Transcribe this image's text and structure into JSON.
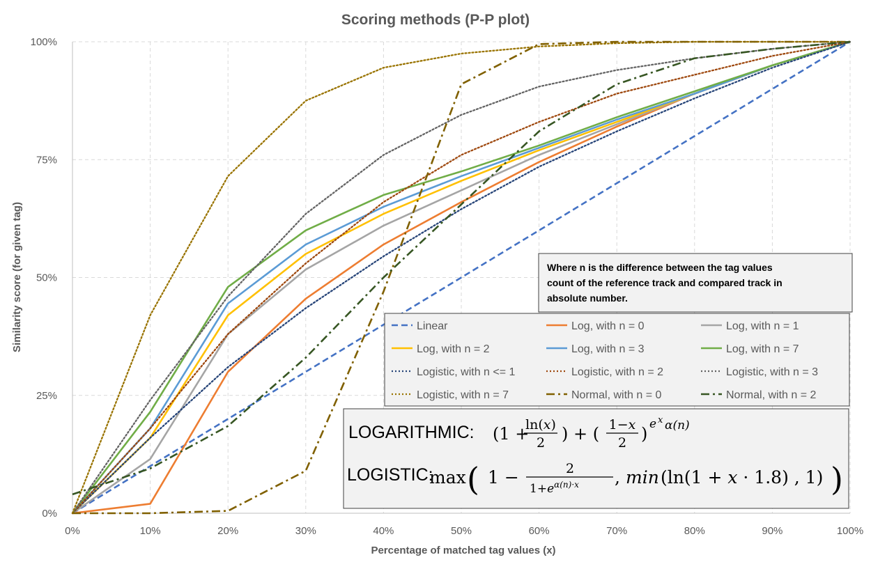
{
  "chart_data": {
    "type": "line",
    "title": "Scoring methods (P-P plot)",
    "xlabel": "Percentage of matched tag values (x)",
    "ylabel": "Similarity score (for given tag)",
    "xlim": [
      0,
      100
    ],
    "ylim": [
      0,
      100
    ],
    "x_ticks": [
      "0%",
      "10%",
      "20%",
      "30%",
      "40%",
      "50%",
      "60%",
      "70%",
      "80%",
      "90%",
      "100%"
    ],
    "y_ticks": [
      "0%",
      "25%",
      "50%",
      "75%",
      "100%"
    ],
    "grid": "dashed",
    "legend_position": "center-right",
    "x": [
      0,
      10,
      20,
      30,
      40,
      50,
      60,
      70,
      80,
      90,
      100
    ],
    "series": [
      {
        "name": "Linear",
        "color": "#4472C4",
        "style": "dashed",
        "values": [
          0,
          10,
          20,
          30,
          40,
          50,
          60,
          70,
          80,
          90,
          100
        ]
      },
      {
        "name": "Log, with n = 0",
        "color": "#ED7D31",
        "style": "solid",
        "values": [
          0,
          2,
          30,
          45.5,
          57,
          66,
          74.5,
          82,
          89,
          95,
          100
        ]
      },
      {
        "name": "Log, with n = 1",
        "color": "#A5A5A5",
        "style": "solid",
        "values": [
          0,
          11.5,
          38,
          51.7,
          61,
          68.5,
          76,
          82.5,
          89,
          95,
          100
        ]
      },
      {
        "name": "Log, with n = 2",
        "color": "#FFC000",
        "style": "solid",
        "values": [
          0,
          16,
          42,
          55,
          63.5,
          70.5,
          77,
          83,
          89,
          95,
          100
        ]
      },
      {
        "name": "Log, with n = 3",
        "color": "#5B9BD5",
        "style": "solid",
        "values": [
          0,
          18,
          44.5,
          57,
          65,
          71.5,
          77.5,
          83.5,
          89,
          95,
          100
        ]
      },
      {
        "name": "Log, with n = 7",
        "color": "#70AD47",
        "style": "solid",
        "values": [
          0,
          21.5,
          48,
          60,
          67.5,
          72.5,
          78,
          84,
          89.5,
          95,
          100
        ]
      },
      {
        "name": "Logistic, with n <= 1",
        "color": "#264478",
        "style": "dotted",
        "values": [
          0,
          16,
          31,
          43.5,
          54.5,
          64.5,
          73.5,
          81,
          88,
          94.5,
          100
        ]
      },
      {
        "name": "Logistic, with n = 2",
        "color": "#9E480E",
        "style": "dotted",
        "values": [
          0,
          18,
          38,
          53,
          66,
          76,
          83,
          89,
          93,
          97,
          100
        ]
      },
      {
        "name": "Logistic, with n = 3",
        "color": "#636363",
        "style": "dotted",
        "values": [
          0,
          24,
          46,
          63.5,
          76,
          84.5,
          90.5,
          94,
          96.5,
          98.5,
          100
        ]
      },
      {
        "name": "Logistic, with n = 7",
        "color": "#997300",
        "style": "dotted",
        "values": [
          0,
          42,
          71.5,
          87.5,
          94.5,
          97.5,
          99,
          99.7,
          100,
          100,
          100
        ]
      },
      {
        "name": "Normal, with n = 0",
        "color": "#806000",
        "style": "dashdot",
        "values": [
          0,
          0,
          0.5,
          9,
          47,
          91,
          99.5,
          100,
          100,
          100,
          100
        ]
      },
      {
        "name": "Normal, with n = 2",
        "color": "#375623",
        "style": "dashdot",
        "values": [
          4,
          9.5,
          18.5,
          33,
          50,
          65.5,
          81,
          91,
          96.5,
          98.5,
          100
        ]
      }
    ]
  },
  "note": {
    "lines": [
      "Where n is the difference between the tag values",
      "count of the reference track and compared track in",
      "absolute number."
    ]
  },
  "formulas": {
    "log_label": "LOGARITHMIC:",
    "logistic_label": "LOGISTIC:"
  }
}
